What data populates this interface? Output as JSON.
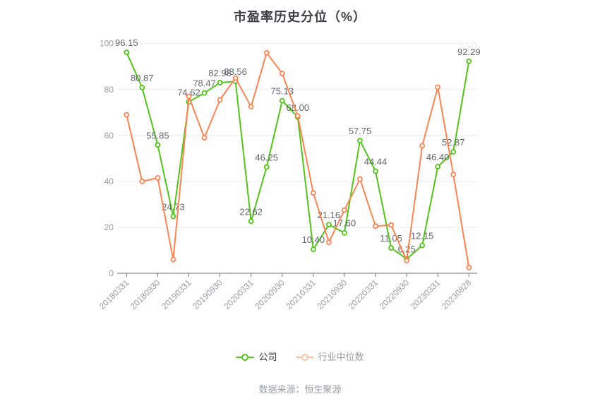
{
  "title": "市盈率历史分位（%）",
  "source": "数据来源：恒生聚源",
  "legend": {
    "company": {
      "label": "公司",
      "marker_color": "#52c41a",
      "text_color": "#333333"
    },
    "industry": {
      "label": "行业中位数",
      "marker_color": "#ffc2a2",
      "text_color": "#999999"
    }
  },
  "axis": {
    "y_tick_labels": [
      "0",
      "20",
      "40",
      "60",
      "80",
      "100"
    ],
    "x_tick_labels": [
      "20180331",
      "20180930",
      "20190331",
      "20190930",
      "20200331",
      "20200930",
      "20210331",
      "20210930",
      "20220331",
      "20220930",
      "20230331",
      "20230828"
    ]
  },
  "chart_data": {
    "type": "line",
    "title": "市盈率历史分位（%）",
    "ylabel": "",
    "xlabel": "",
    "ylim": [
      0,
      100
    ],
    "y_ticks": [
      0,
      20,
      40,
      60,
      80,
      100
    ],
    "grid": true,
    "legend_position": "bottom",
    "x_tick_labels": [
      "20180331",
      "20180930",
      "20190331",
      "20190930",
      "20200331",
      "20200930",
      "20210331",
      "20210930",
      "20220331",
      "20220930",
      "20230331",
      "20230828"
    ],
    "ticks_every_n_points": 2,
    "series": [
      {
        "name": "公司",
        "color": "#52c41a",
        "point_labels": [
          "96.15",
          "80.87",
          "55.85",
          "24.73",
          "74.62",
          "78.47",
          "82.98",
          "83.56",
          "22.62",
          "46.25",
          "75.13",
          "68.00",
          "10.40",
          "21.16",
          "17.60",
          "57.75",
          "44.44",
          "11.05",
          "6.25",
          "12.15",
          "46.40",
          "52.87",
          "92.29"
        ],
        "values": [
          96.15,
          80.87,
          55.85,
          24.73,
          74.62,
          78.47,
          82.98,
          83.56,
          22.62,
          46.25,
          75.13,
          68.0,
          10.4,
          21.16,
          17.6,
          57.75,
          44.44,
          11.05,
          6.25,
          12.15,
          46.4,
          52.87,
          92.29
        ]
      },
      {
        "name": "行业中位数",
        "color": "#fc8452",
        "point_labels": null,
        "values": [
          69,
          40,
          41.5,
          6,
          77,
          59,
          75.5,
          85,
          72.5,
          96,
          87,
          68.5,
          35,
          13.5,
          27.5,
          41,
          20.5,
          21,
          5.5,
          55.5,
          81,
          43,
          2.5
        ]
      }
    ]
  },
  "style": {
    "grid_color": "#e7ebf2",
    "axis_line_color": "#6e7279",
    "axis_label_color": "#999ca3",
    "value_label_color": "#63666b"
  }
}
